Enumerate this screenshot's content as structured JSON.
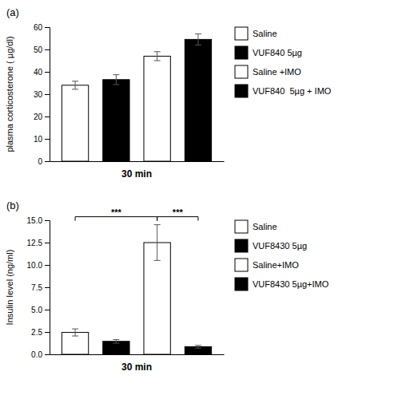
{
  "chart_data": [
    {
      "type": "bar",
      "title": "(a)",
      "xlabel": "30 min",
      "ylabel": "plasma corticosterone ( µg/dl)",
      "categories": [
        "Saline",
        "VUF840 5µg",
        "Saline +IMO",
        "VUF840  5µg + IMO"
      ],
      "values": [
        34.0,
        36.5,
        47.0,
        54.5
      ],
      "errors": [
        1.8,
        2.2,
        2.0,
        2.5
      ],
      "colors": [
        "white",
        "black",
        "white",
        "black"
      ],
      "ylim": [
        0,
        60
      ],
      "yticks": [
        0,
        10,
        20,
        30,
        40,
        50,
        60
      ],
      "tick_labels": "y",
      "legend": "right"
    },
    {
      "type": "bar",
      "title": "(b)",
      "xlabel": "30 min",
      "ylabel": "Insulin level (ng/ml)",
      "categories": [
        "Saline",
        "VUF8430 5µg",
        "Saline+IMO",
        "VUF8430 5µg+IMO"
      ],
      "values": [
        2.45,
        1.45,
        12.5,
        0.85
      ],
      "errors": [
        0.4,
        0.2,
        2.0,
        0.15
      ],
      "colors": [
        "white",
        "black",
        "white",
        "black"
      ],
      "ylim": [
        0,
        15.0
      ],
      "yticks": [
        {
          "value": 0.0,
          "label": "0.0"
        },
        2.5,
        {
          "value": 5.0,
          "label": "5.0"
        },
        7.5,
        {
          "value": 10.0,
          "label": "10.0"
        },
        12.5,
        {
          "value": 15.0,
          "label": "15.0"
        }
      ],
      "tick_labels": "y",
      "legend": "right",
      "annotations": [
        {
          "text": "***",
          "between": [
            "Saline",
            "Saline+IMO"
          ]
        },
        {
          "text": "***",
          "between": [
            "Saline+IMO",
            "VUF8430 5µg+IMO"
          ]
        }
      ]
    }
  ]
}
